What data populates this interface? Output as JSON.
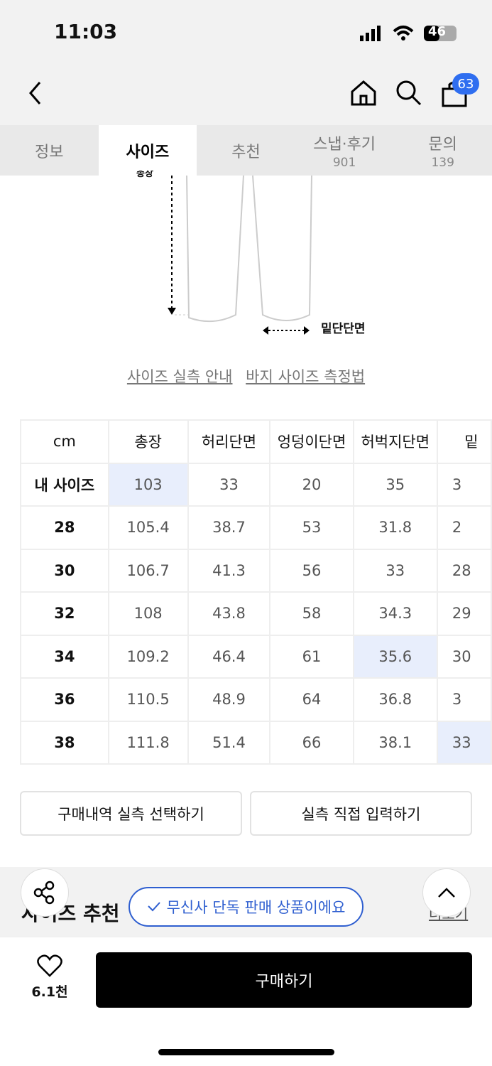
{
  "status": {
    "time": "11:03",
    "battery": "46"
  },
  "nav": {
    "cart_count": "63",
    "icons": [
      "chevron-left-icon",
      "home-icon",
      "search-icon",
      "cart-icon"
    ]
  },
  "tabs": [
    {
      "label": "정보"
    },
    {
      "label": "사이즈"
    },
    {
      "label": "추천"
    },
    {
      "label": "스냅·후기",
      "count": "901"
    },
    {
      "label": "문의",
      "count": "139"
    }
  ],
  "diagram": {
    "length_label": "총장",
    "hem_label": "밑단단면"
  },
  "links": {
    "guide": "사이즈 실측 안내",
    "measure": "바지 사이즈 측정법"
  },
  "table": {
    "headers": [
      "cm",
      "총장",
      "허리단면",
      "엉덩이단면",
      "허벅지단면",
      "밑"
    ],
    "rows": [
      [
        "내 사이즈",
        "103",
        "33",
        "20",
        "35",
        "3"
      ],
      [
        "28",
        "105.4",
        "38.7",
        "53",
        "31.8",
        "2"
      ],
      [
        "30",
        "106.7",
        "41.3",
        "56",
        "33",
        "28"
      ],
      [
        "32",
        "108",
        "43.8",
        "58",
        "34.3",
        "29"
      ],
      [
        "34",
        "109.2",
        "46.4",
        "61",
        "35.6",
        "30"
      ],
      [
        "36",
        "110.5",
        "48.9",
        "64",
        "36.8",
        "3"
      ],
      [
        "38",
        "111.8",
        "51.4",
        "66",
        "38.1",
        "33"
      ]
    ],
    "highlight_color": "#e8eefc"
  },
  "actions": {
    "history": "구매내역 실측 선택하기",
    "manual": "실측 직접 입력하기"
  },
  "recommend": {
    "title": "사이즈 추천",
    "more": "더보기"
  },
  "exclusive_badge": "무신사 단독 판매 상품이에요",
  "bottom": {
    "likes": "6.1천",
    "buy": "구매하기"
  },
  "accent": "#2f5fd0"
}
